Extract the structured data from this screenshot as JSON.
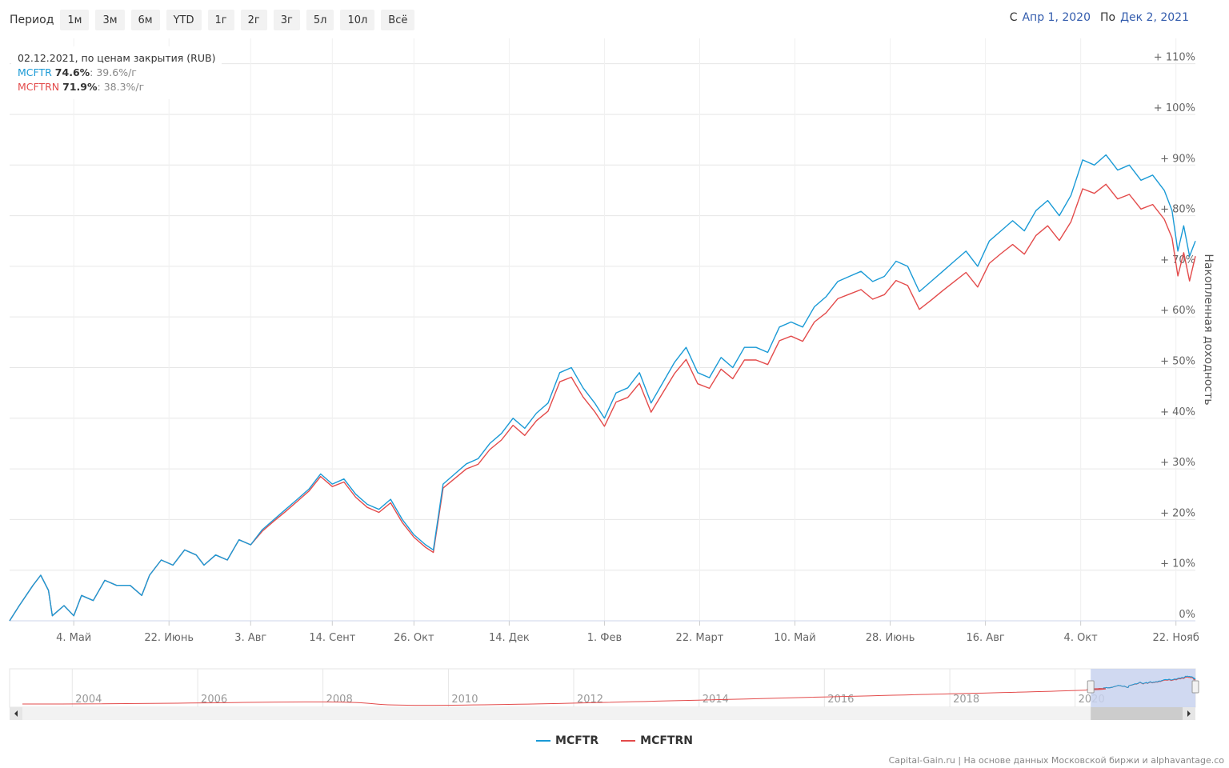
{
  "toolbar": {
    "period_label": "Период",
    "buttons": [
      "1м",
      "3м",
      "6м",
      "YTD",
      "1г",
      "2г",
      "3г",
      "5л",
      "10л",
      "Всё"
    ]
  },
  "date_range": {
    "from_label": "С",
    "from_value": "Апр 1, 2020",
    "to_label": "По",
    "to_value": "Дек 2, 2021"
  },
  "tooltip": {
    "header": "02.12.2021, по ценам закрытия (RUB)",
    "series": [
      {
        "name": "MCFTR",
        "total": "74.6%",
        "annual": ": 39.6%/г"
      },
      {
        "name": "MCFTRN",
        "total": "71.9%",
        "annual": ": 38.3%/г"
      }
    ]
  },
  "legend": {
    "items": [
      "MCFTR",
      "MCFTRN"
    ]
  },
  "credits": "Capital-Gain.ru | На основе данных Московской биржи и alphavantage.co",
  "colors": {
    "mcftr": "#1a9ad6",
    "mcftrn": "#e34b4b",
    "navigator_mask": "#c8d2ee",
    "grid": "#e6e6e6"
  },
  "chart_data": {
    "type": "line",
    "ylabel": "Накопленная доходность",
    "ylim": [
      0,
      115
    ],
    "y_ticks": [
      0,
      10,
      20,
      30,
      40,
      50,
      60,
      70,
      80,
      90,
      100,
      110
    ],
    "y_tick_labels": [
      "0%",
      "+ 10%",
      "+ 20%",
      "+ 30%",
      "+ 40%",
      "+ 50%",
      "+ 60%",
      "+ 70%",
      "+ 80%",
      "+ 90%",
      "+ 100%",
      "+ 110%"
    ],
    "x_range": [
      "2020-04-01",
      "2021-12-02"
    ],
    "x_ticks": [
      {
        "date": "2020-05-04",
        "label": "4. Май"
      },
      {
        "date": "2020-06-22",
        "label": "22. Июнь"
      },
      {
        "date": "2020-08-03",
        "label": "3. Авг"
      },
      {
        "date": "2020-09-14",
        "label": "14. Сент"
      },
      {
        "date": "2020-10-26",
        "label": "26. Окт"
      },
      {
        "date": "2020-12-14",
        "label": "14. Дек"
      },
      {
        "date": "2021-02-01",
        "label": "1. Фев"
      },
      {
        "date": "2021-03-22",
        "label": "22. Март"
      },
      {
        "date": "2021-05-10",
        "label": "10. Май"
      },
      {
        "date": "2021-06-28",
        "label": "28. Июнь"
      },
      {
        "date": "2021-08-16",
        "label": "16. Авг"
      },
      {
        "date": "2021-10-04",
        "label": "4. Окт"
      },
      {
        "date": "2021-11-22",
        "label": "22. Нояб"
      }
    ],
    "grid": true,
    "legend_position": "bottom-center",
    "series": [
      {
        "name": "MCFTR",
        "points": [
          [
            "2020-04-01",
            0
          ],
          [
            "2020-04-06",
            3
          ],
          [
            "2020-04-13",
            7
          ],
          [
            "2020-04-17",
            9
          ],
          [
            "2020-04-21",
            6
          ],
          [
            "2020-04-23",
            1
          ],
          [
            "2020-04-29",
            3
          ],
          [
            "2020-05-04",
            1
          ],
          [
            "2020-05-08",
            5
          ],
          [
            "2020-05-14",
            4
          ],
          [
            "2020-05-20",
            8
          ],
          [
            "2020-05-26",
            7
          ],
          [
            "2020-06-02",
            7
          ],
          [
            "2020-06-08",
            5
          ],
          [
            "2020-06-12",
            9
          ],
          [
            "2020-06-18",
            12
          ],
          [
            "2020-06-24",
            11
          ],
          [
            "2020-06-30",
            14
          ],
          [
            "2020-07-06",
            13
          ],
          [
            "2020-07-10",
            11
          ],
          [
            "2020-07-16",
            13
          ],
          [
            "2020-07-22",
            12
          ],
          [
            "2020-07-28",
            16
          ],
          [
            "2020-08-03",
            15
          ],
          [
            "2020-08-09",
            18
          ],
          [
            "2020-08-15",
            20
          ],
          [
            "2020-08-21",
            22
          ],
          [
            "2020-08-27",
            24
          ],
          [
            "2020-09-02",
            26
          ],
          [
            "2020-09-08",
            29
          ],
          [
            "2020-09-14",
            27
          ],
          [
            "2020-09-20",
            28
          ],
          [
            "2020-09-26",
            25
          ],
          [
            "2020-10-02",
            23
          ],
          [
            "2020-10-08",
            22
          ],
          [
            "2020-10-14",
            24
          ],
          [
            "2020-10-20",
            20
          ],
          [
            "2020-10-26",
            17
          ],
          [
            "2020-11-01",
            15
          ],
          [
            "2020-11-05",
            14
          ],
          [
            "2020-11-10",
            27
          ],
          [
            "2020-11-16",
            29
          ],
          [
            "2020-11-22",
            31
          ],
          [
            "2020-11-28",
            32
          ],
          [
            "2020-12-04",
            35
          ],
          [
            "2020-12-10",
            37
          ],
          [
            "2020-12-16",
            40
          ],
          [
            "2020-12-22",
            38
          ],
          [
            "2020-12-28",
            41
          ],
          [
            "2021-01-03",
            43
          ],
          [
            "2021-01-09",
            49
          ],
          [
            "2021-01-15",
            50
          ],
          [
            "2021-01-21",
            46
          ],
          [
            "2021-01-27",
            43
          ],
          [
            "2021-02-01",
            40
          ],
          [
            "2021-02-07",
            45
          ],
          [
            "2021-02-13",
            46
          ],
          [
            "2021-02-19",
            49
          ],
          [
            "2021-02-25",
            43
          ],
          [
            "2021-03-03",
            47
          ],
          [
            "2021-03-09",
            51
          ],
          [
            "2021-03-15",
            54
          ],
          [
            "2021-03-21",
            49
          ],
          [
            "2021-03-27",
            48
          ],
          [
            "2021-04-02",
            52
          ],
          [
            "2021-04-08",
            50
          ],
          [
            "2021-04-14",
            54
          ],
          [
            "2021-04-20",
            54
          ],
          [
            "2021-04-26",
            53
          ],
          [
            "2021-05-02",
            58
          ],
          [
            "2021-05-08",
            59
          ],
          [
            "2021-05-14",
            58
          ],
          [
            "2021-05-20",
            62
          ],
          [
            "2021-05-26",
            64
          ],
          [
            "2021-06-01",
            67
          ],
          [
            "2021-06-07",
            68
          ],
          [
            "2021-06-13",
            69
          ],
          [
            "2021-06-19",
            67
          ],
          [
            "2021-06-25",
            68
          ],
          [
            "2021-07-01",
            71
          ],
          [
            "2021-07-07",
            70
          ],
          [
            "2021-07-13",
            65
          ],
          [
            "2021-07-19",
            67
          ],
          [
            "2021-07-25",
            69
          ],
          [
            "2021-07-31",
            71
          ],
          [
            "2021-08-06",
            73
          ],
          [
            "2021-08-12",
            70
          ],
          [
            "2021-08-18",
            75
          ],
          [
            "2021-08-24",
            77
          ],
          [
            "2021-08-30",
            79
          ],
          [
            "2021-09-05",
            77
          ],
          [
            "2021-09-11",
            81
          ],
          [
            "2021-09-17",
            83
          ],
          [
            "2021-09-23",
            80
          ],
          [
            "2021-09-29",
            84
          ],
          [
            "2021-10-05",
            91
          ],
          [
            "2021-10-11",
            90
          ],
          [
            "2021-10-17",
            92
          ],
          [
            "2021-10-23",
            89
          ],
          [
            "2021-10-29",
            90
          ],
          [
            "2021-11-04",
            87
          ],
          [
            "2021-11-10",
            88
          ],
          [
            "2021-11-16",
            85
          ],
          [
            "2021-11-20",
            81
          ],
          [
            "2021-11-23",
            73
          ],
          [
            "2021-11-26",
            78
          ],
          [
            "2021-11-29",
            72
          ],
          [
            "2021-12-02",
            75
          ]
        ]
      },
      {
        "name": "MCFTRN",
        "points": [
          [
            "2020-04-01",
            0
          ],
          [
            "2020-04-06",
            3
          ],
          [
            "2020-04-13",
            7
          ],
          [
            "2020-04-17",
            9
          ],
          [
            "2020-04-21",
            6
          ],
          [
            "2020-04-23",
            1
          ],
          [
            "2020-04-29",
            3
          ],
          [
            "2020-05-04",
            1
          ],
          [
            "2020-05-08",
            5
          ],
          [
            "2020-05-14",
            4
          ],
          [
            "2020-05-20",
            8
          ],
          [
            "2020-05-26",
            7
          ],
          [
            "2020-06-02",
            7
          ],
          [
            "2020-06-08",
            5
          ],
          [
            "2020-06-12",
            9
          ],
          [
            "2020-06-18",
            12
          ],
          [
            "2020-06-24",
            11
          ],
          [
            "2020-06-30",
            14
          ],
          [
            "2020-07-06",
            13
          ],
          [
            "2020-07-10",
            11
          ],
          [
            "2020-07-16",
            13
          ],
          [
            "2020-07-22",
            12
          ],
          [
            "2020-07-28",
            16
          ],
          [
            "2020-08-03",
            15
          ],
          [
            "2020-08-09",
            17.7
          ],
          [
            "2020-08-15",
            19.7
          ],
          [
            "2020-08-21",
            21.6
          ],
          [
            "2020-08-27",
            23.6
          ],
          [
            "2020-09-02",
            25.6
          ],
          [
            "2020-09-08",
            28.5
          ],
          [
            "2020-09-14",
            26.5
          ],
          [
            "2020-09-20",
            27.4
          ],
          [
            "2020-09-26",
            24.4
          ],
          [
            "2020-10-02",
            22.4
          ],
          [
            "2020-10-08",
            21.4
          ],
          [
            "2020-10-14",
            23.3
          ],
          [
            "2020-10-20",
            19.4
          ],
          [
            "2020-10-26",
            16.5
          ],
          [
            "2020-11-01",
            14.5
          ],
          [
            "2020-11-05",
            13.5
          ],
          [
            "2020-11-10",
            26.2
          ],
          [
            "2020-11-16",
            28.1
          ],
          [
            "2020-11-22",
            30
          ],
          [
            "2020-11-28",
            30.9
          ],
          [
            "2020-12-04",
            33.8
          ],
          [
            "2020-12-10",
            35.7
          ],
          [
            "2020-12-16",
            38.6
          ],
          [
            "2020-12-22",
            36.6
          ],
          [
            "2020-12-28",
            39.5
          ],
          [
            "2021-01-03",
            41.4
          ],
          [
            "2021-01-09",
            47.2
          ],
          [
            "2021-01-15",
            48.1
          ],
          [
            "2021-01-21",
            44.2
          ],
          [
            "2021-01-27",
            41.3
          ],
          [
            "2021-02-01",
            38.4
          ],
          [
            "2021-02-07",
            43.2
          ],
          [
            "2021-02-13",
            44.1
          ],
          [
            "2021-02-19",
            46.9
          ],
          [
            "2021-02-25",
            41.2
          ],
          [
            "2021-03-03",
            45
          ],
          [
            "2021-03-09",
            48.8
          ],
          [
            "2021-03-15",
            51.6
          ],
          [
            "2021-03-21",
            46.8
          ],
          [
            "2021-03-27",
            45.9
          ],
          [
            "2021-04-02",
            49.7
          ],
          [
            "2021-04-08",
            47.8
          ],
          [
            "2021-04-14",
            51.5
          ],
          [
            "2021-04-20",
            51.5
          ],
          [
            "2021-04-26",
            50.6
          ],
          [
            "2021-05-02",
            55.3
          ],
          [
            "2021-05-08",
            56.2
          ],
          [
            "2021-05-14",
            55.2
          ],
          [
            "2021-05-20",
            59
          ],
          [
            "2021-05-26",
            60.8
          ],
          [
            "2021-06-01",
            63.6
          ],
          [
            "2021-06-07",
            64.5
          ],
          [
            "2021-06-13",
            65.4
          ],
          [
            "2021-06-19",
            63.5
          ],
          [
            "2021-06-25",
            64.4
          ],
          [
            "2021-07-01",
            67.2
          ],
          [
            "2021-07-07",
            66.2
          ],
          [
            "2021-07-13",
            61.5
          ],
          [
            "2021-07-19",
            63.3
          ],
          [
            "2021-07-25",
            65.2
          ],
          [
            "2021-07-31",
            67
          ],
          [
            "2021-08-06",
            68.8
          ],
          [
            "2021-08-12",
            65.9
          ],
          [
            "2021-08-18",
            70.6
          ],
          [
            "2021-08-24",
            72.5
          ],
          [
            "2021-08-30",
            74.3
          ],
          [
            "2021-09-05",
            72.4
          ],
          [
            "2021-09-11",
            76.1
          ],
          [
            "2021-09-17",
            78
          ],
          [
            "2021-09-23",
            75.1
          ],
          [
            "2021-09-29",
            78.8
          ],
          [
            "2021-10-05",
            85.3
          ],
          [
            "2021-10-11",
            84.4
          ],
          [
            "2021-10-17",
            86.2
          ],
          [
            "2021-10-23",
            83.3
          ],
          [
            "2021-10-29",
            84.2
          ],
          [
            "2021-11-04",
            81.3
          ],
          [
            "2021-11-10",
            82.2
          ],
          [
            "2021-11-16",
            79.3
          ],
          [
            "2021-11-20",
            75.6
          ],
          [
            "2021-11-23",
            68.1
          ],
          [
            "2021-11-26",
            72.7
          ],
          [
            "2021-11-29",
            67.1
          ],
          [
            "2021-12-02",
            72
          ]
        ]
      }
    ],
    "navigator": {
      "x_range": [
        "2003-01-01",
        "2021-12-02"
      ],
      "tick_labels": [
        {
          "date": "2004-01-01",
          "label": "2004"
        },
        {
          "date": "2006-01-01",
          "label": "2006"
        },
        {
          "date": "2008-01-01",
          "label": "2008"
        },
        {
          "date": "2010-01-01",
          "label": "2010"
        },
        {
          "date": "2012-01-01",
          "label": "2012"
        },
        {
          "date": "2014-01-01",
          "label": "2014"
        },
        {
          "date": "2016-01-01",
          "label": "2016"
        },
        {
          "date": "2018-01-01",
          "label": "2018"
        },
        {
          "date": "2020-01-01",
          "label": "2020"
        }
      ],
      "selected_range": [
        "2020-04-01",
        "2021-12-02"
      ]
    }
  }
}
